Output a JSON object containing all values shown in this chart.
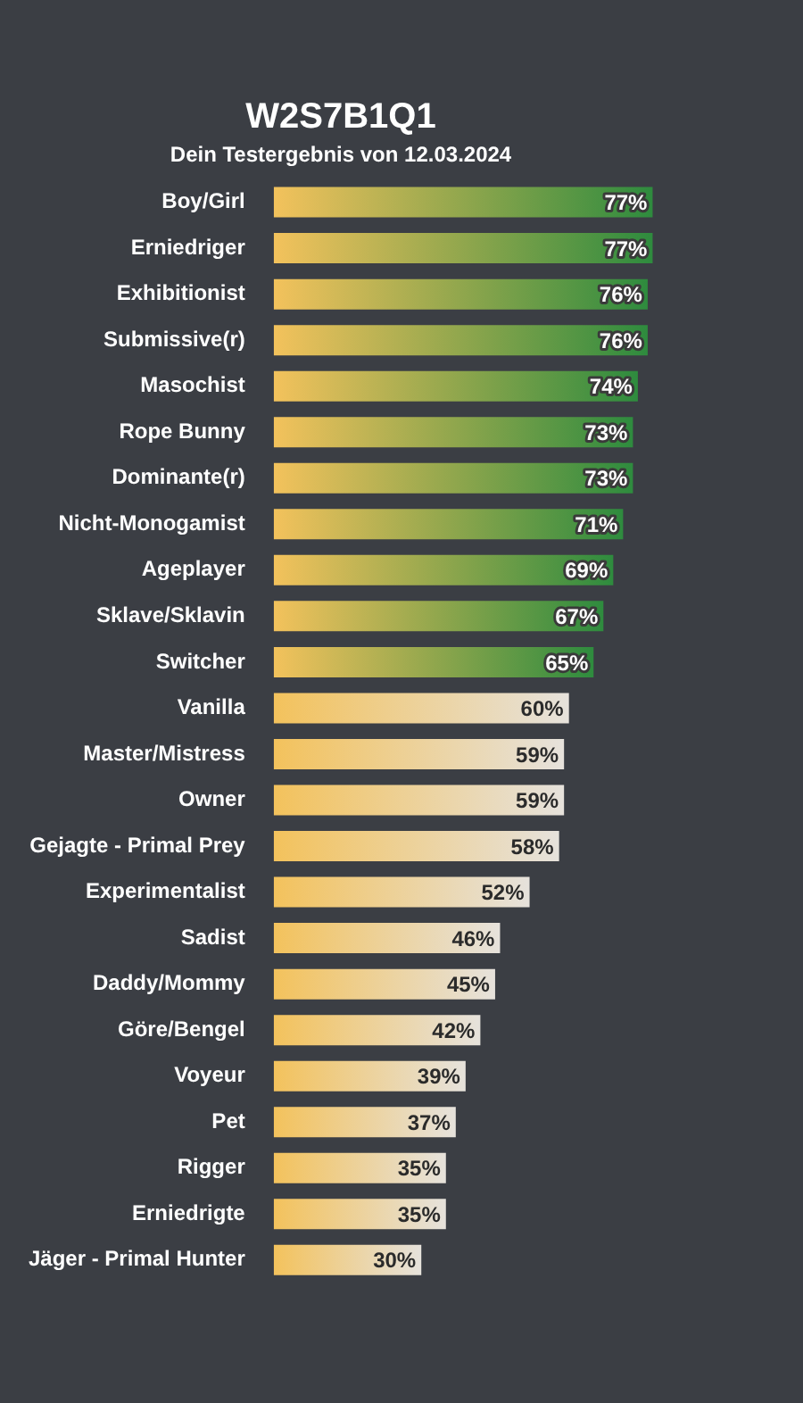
{
  "chart_data": {
    "type": "bar",
    "orientation": "horizontal",
    "title": "W2S7B1Q1",
    "subtitle": "Dein Testergebnis von 12.03.2024",
    "categories": [
      "Boy/Girl",
      "Erniedriger",
      "Exhibitionist",
      "Submissive(r)",
      "Masochist",
      "Rope Bunny",
      "Dominante(r)",
      "Nicht-Monogamist",
      "Ageplayer",
      "Sklave/Sklavin",
      "Switcher",
      "Vanilla",
      "Master/Mistress",
      "Owner",
      "Gejagte - Primal Prey",
      "Experimentalist",
      "Sadist",
      "Daddy/Mommy",
      "Göre/Bengel",
      "Voyeur",
      "Pet",
      "Rigger",
      "Erniedrigte",
      "Jäger - Primal Hunter"
    ],
    "values": [
      77,
      77,
      76,
      76,
      74,
      73,
      73,
      71,
      69,
      67,
      65,
      60,
      59,
      59,
      58,
      52,
      46,
      45,
      42,
      39,
      37,
      35,
      35,
      30
    ],
    "value_labels": [
      "77%",
      "77%",
      "76%",
      "76%",
      "74%",
      "73%",
      "73%",
      "71%",
      "69%",
      "67%",
      "65%",
      "60%",
      "59%",
      "59%",
      "58%",
      "52%",
      "46%",
      "45%",
      "42%",
      "39%",
      "37%",
      "35%",
      "35%",
      "30%"
    ],
    "colors": [
      "#2e8b3e",
      "#2e8b3e",
      "#2e8b3e",
      "#2e8b3e",
      "#2e8b3e",
      "#2e8b3e",
      "#2e8b3e",
      "#2e8b3e",
      "#2e8b3e",
      "#2e8b3e",
      "#2e8b3e",
      "#e6e2dc",
      "#e6e2dc",
      "#e6e2dc",
      "#e6e2dc",
      "#e6e2dc",
      "#e6e2dc",
      "#e6e2dc",
      "#e6e2dc",
      "#e6e2dc",
      "#e6e2dc",
      "#e6e2dc",
      "#e6e2dc",
      "#e6e2dc"
    ],
    "tick_labels": "y"
  }
}
